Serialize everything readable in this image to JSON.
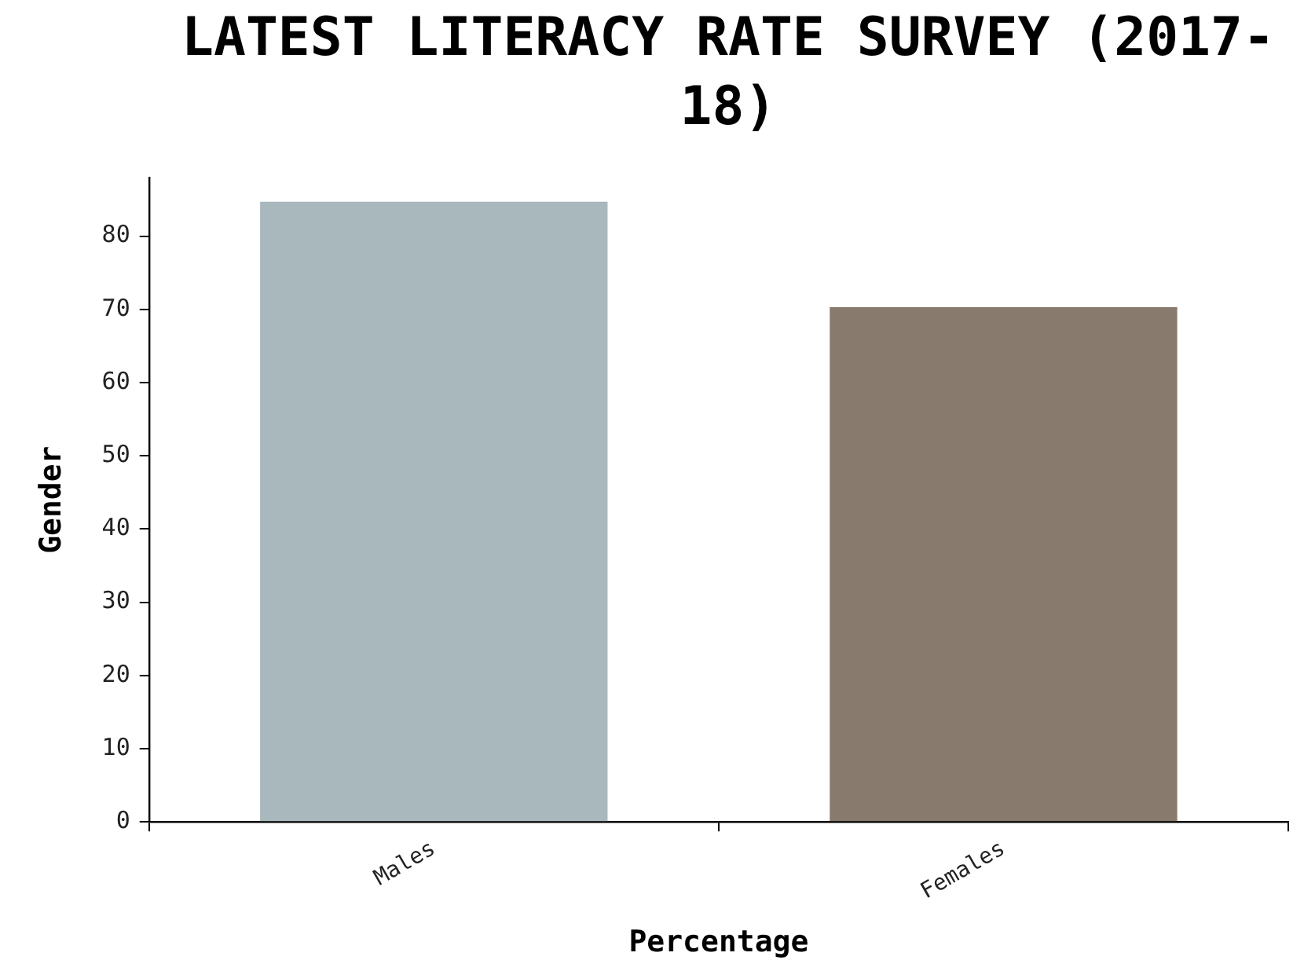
{
  "chart_data": {
    "type": "bar",
    "title": "LATEST LITERACY RATE SURVEY (2017-18)",
    "xlabel": "Percentage",
    "ylabel": "Gender",
    "categories": [
      "Males",
      "Females"
    ],
    "values": [
      84.7,
      70.3
    ],
    "colors": [
      "#a8b8bc",
      "#887a6d"
    ],
    "ylim": [
      0,
      88
    ],
    "yticks": [
      0,
      10,
      20,
      30,
      40,
      50,
      60,
      70,
      80
    ],
    "grid": false,
    "legend": false
  }
}
